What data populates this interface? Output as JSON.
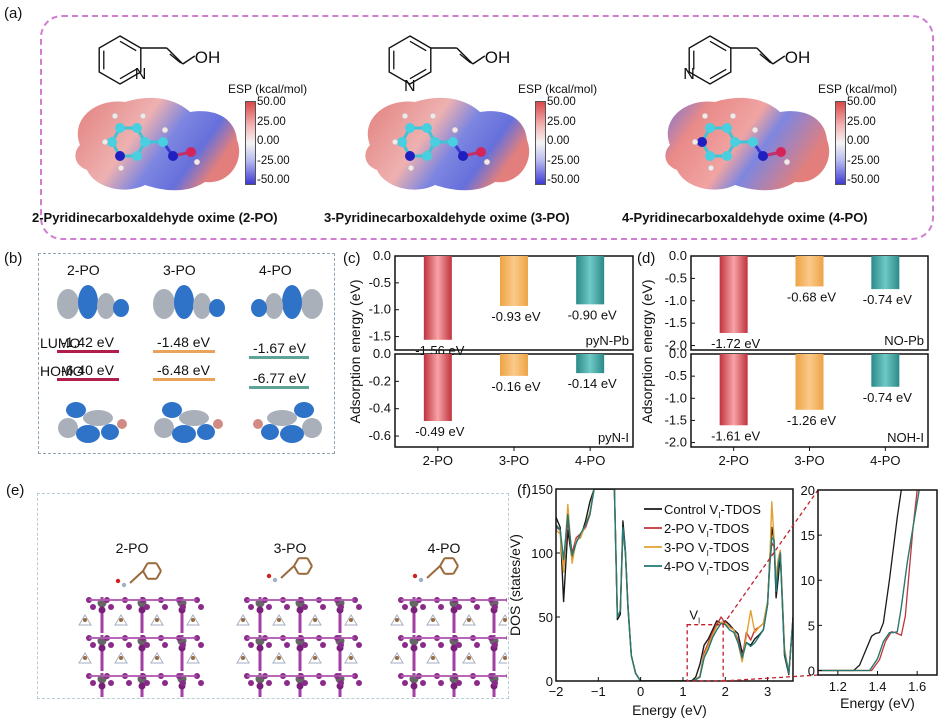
{
  "panel_labels": {
    "a": "(a)",
    "b": "(b)",
    "c": "(c)",
    "d": "(d)",
    "e": "(e)",
    "f": "(f)"
  },
  "panel_a": {
    "molecules": [
      {
        "id": "2-PO",
        "name": "2-Pyridinecarboxaldehyde oxime (2-PO)",
        "structure_n_label": "N",
        "structure_oh_label": "OH",
        "n_position": "ortho"
      },
      {
        "id": "3-PO",
        "name": "3-Pyridinecarboxaldehyde oxime (3-PO)",
        "structure_n_label": "N",
        "structure_oh_label": "OH",
        "n_position": "meta"
      },
      {
        "id": "4-PO",
        "name": "4-Pyridinecarboxaldehyde oxime (4-PO)",
        "structure_n_label": "N",
        "structure_oh_label": "OH",
        "n_position": "para"
      }
    ],
    "esp_title": "ESP  (kcal/mol)",
    "esp_ticks": [
      "50.00",
      "25.00",
      "0.00",
      "-25.00",
      "-50.00"
    ],
    "colors": {
      "positive": "#d94848",
      "neutral": "#f4f4f4",
      "negative": "#3f3ad4",
      "border": "#cf7fd0"
    }
  },
  "panel_b": {
    "columns": [
      "2-PO",
      "3-PO",
      "4-PO"
    ],
    "lumo_label": "LUMO",
    "homo_label": "HOMO",
    "lumo_values": [
      "-1.42 eV",
      "-1.48 eV",
      "-1.67 eV"
    ],
    "homo_values": [
      "-6.40 eV",
      "-6.48 eV",
      "-6.77 eV"
    ],
    "level_colors": [
      "#b01f4a",
      "#e9a35a",
      "#5fa397"
    ]
  },
  "panel_e": {
    "columns": [
      "2-PO",
      "3-PO",
      "4-PO"
    ]
  },
  "chart_data": [
    {
      "id": "c",
      "type": "bar",
      "ylabel": "Adsorption energy (eV)",
      "categories": [
        "2-PO",
        "3-PO",
        "4-PO"
      ],
      "subplots": [
        {
          "name": "pyN-Pb",
          "values": [
            -1.56,
            -0.93,
            -0.9
          ],
          "labels": [
            "-1.56 eV",
            "-0.93 eV",
            "-0.90 eV"
          ],
          "ylim": [
            -1.75,
            0
          ],
          "yticks": [
            "0.0",
            "-0.5",
            "-1.0",
            "-1.5"
          ],
          "ytick_values": [
            0,
            -0.5,
            -1.0,
            -1.5
          ]
        },
        {
          "name": "pyN-I",
          "values": [
            -0.49,
            -0.16,
            -0.14
          ],
          "labels": [
            "-0.49 eV",
            "-0.16 eV",
            "-0.14 eV"
          ],
          "ylim": [
            -0.68,
            0
          ],
          "yticks": [
            "0.0",
            "-0.2",
            "-0.4",
            "-0.6"
          ],
          "ytick_values": [
            0,
            -0.2,
            -0.4,
            -0.6
          ]
        }
      ],
      "colors": [
        "#c0333d",
        "#eda445",
        "#2a8a88"
      ]
    },
    {
      "id": "d",
      "type": "bar",
      "ylabel": "Adsorption energy (eV)",
      "categories": [
        "2-PO",
        "3-PO",
        "4-PO"
      ],
      "subplots": [
        {
          "name": "NO-Pb",
          "values": [
            -1.72,
            -0.68,
            -0.74
          ],
          "labels": [
            "-1.72 eV",
            "-0.68 eV",
            "-0.74 eV"
          ],
          "ylim": [
            -2.1,
            0
          ],
          "yticks": [
            "0.0",
            "-0.5",
            "-1.0",
            "-1.5",
            "-2.0"
          ],
          "ytick_values": [
            0,
            -0.5,
            -1.0,
            -1.5,
            -2.0
          ]
        },
        {
          "name": "NOH-I",
          "values": [
            -1.61,
            -1.26,
            -0.74
          ],
          "labels": [
            "-1.61 eV",
            "-1.26 eV",
            "-0.74 eV"
          ],
          "ylim": [
            -2.1,
            0
          ],
          "yticks": [
            "0.0",
            "-0.5",
            "-1.0",
            "-1.5",
            "-2.0"
          ],
          "ytick_values": [
            0,
            -0.5,
            -1.0,
            -1.5,
            -2.0
          ]
        }
      ],
      "colors": [
        "#c0333d",
        "#eda445",
        "#2a8a88"
      ]
    },
    {
      "id": "f",
      "type": "line",
      "xlabel": "Energy (eV)",
      "ylabel": "DOS (states/eV)",
      "xlim": [
        -2,
        3.6
      ],
      "ylim": [
        0,
        150
      ],
      "xticks": [
        "-2",
        "-1",
        "0",
        "1",
        "2",
        "3"
      ],
      "xtick_values": [
        -2,
        -1,
        0,
        1,
        2,
        3
      ],
      "yticks": [
        "0",
        "50",
        "100",
        "150"
      ],
      "ytick_values": [
        0,
        50,
        100,
        150
      ],
      "legend_position": "top-right",
      "annotation": "V",
      "annotation_sub": "I",
      "zoom_box": {
        "x": [
          1.1,
          1.95
        ],
        "y": [
          0,
          44
        ]
      },
      "series": [
        {
          "name": "Control VI-TDOS",
          "legend_main": "Control V",
          "legend_sub": "I",
          "legend_tail": "-TDOS",
          "color": "#1a1a1a",
          "x": [
            -2,
            -1.9,
            -1.82,
            -1.72,
            -1.62,
            -1.52,
            -1.42,
            -1.3,
            -1.2,
            -1.1,
            -1.0,
            -0.92,
            -0.82,
            -0.72,
            -0.62,
            -0.55,
            -0.48,
            -0.42,
            -0.36,
            -0.3,
            -0.22,
            -0.12,
            0,
            0.5,
            1.0,
            1.2,
            1.3,
            1.4,
            1.5,
            1.6,
            1.7,
            1.8,
            1.9,
            2.0,
            2.1,
            2.2,
            2.3,
            2.4,
            2.5,
            2.6,
            2.7,
            2.8,
            2.9,
            3.0,
            3.05,
            3.1,
            3.15,
            3.2,
            3.25,
            3.3,
            3.4,
            3.5,
            3.6
          ],
          "y": [
            128,
            120,
            62,
            118,
            95,
            110,
            112,
            125,
            140,
            150,
            150,
            150,
            150,
            150,
            150,
            48,
            52,
            125,
            102,
            60,
            20,
            6,
            0,
            0,
            0,
            0,
            3,
            13,
            28,
            33,
            40,
            47,
            45,
            47,
            44,
            40,
            37,
            22,
            30,
            28,
            33,
            36,
            40,
            60,
            95,
            120,
            110,
            65,
            80,
            100,
            20,
            5,
            50
          ]
        },
        {
          "name": "2-PO VI-TDOS",
          "legend_main": "2-PO V",
          "legend_sub": "I",
          "legend_tail": "-TDOS",
          "color": "#c0333d",
          "x": [
            -2,
            -1.9,
            -1.82,
            -1.72,
            -1.62,
            -1.52,
            -1.42,
            -1.3,
            -1.2,
            -1.1,
            -1.0,
            -0.92,
            -0.82,
            -0.72,
            -0.62,
            -0.55,
            -0.48,
            -0.42,
            -0.36,
            -0.3,
            -0.22,
            -0.12,
            0,
            0.5,
            1.0,
            1.2,
            1.3,
            1.4,
            1.5,
            1.6,
            1.7,
            1.8,
            1.9,
            2.0,
            2.1,
            2.2,
            2.3,
            2.4,
            2.5,
            2.6,
            2.7,
            2.8,
            2.9,
            3.0,
            3.05,
            3.1,
            3.15,
            3.2,
            3.25,
            3.3,
            3.4,
            3.5,
            3.6
          ],
          "y": [
            120,
            118,
            88,
            125,
            100,
            112,
            115,
            120,
            130,
            150,
            150,
            150,
            150,
            150,
            150,
            50,
            55,
            118,
            100,
            58,
            20,
            6,
            0,
            0,
            0,
            0,
            1,
            4,
            22,
            30,
            38,
            44,
            50,
            45,
            42,
            40,
            32,
            18,
            38,
            32,
            40,
            42,
            45,
            62,
            90,
            108,
            105,
            78,
            95,
            102,
            25,
            6,
            48
          ]
        },
        {
          "name": "3-PO VI-TDOS",
          "legend_main": "3-PO V",
          "legend_sub": "I",
          "legend_tail": "-TDOS",
          "color": "#e3a030",
          "x": [
            -2,
            -1.9,
            -1.82,
            -1.72,
            -1.62,
            -1.52,
            -1.42,
            -1.3,
            -1.2,
            -1.1,
            -1.0,
            -0.92,
            -0.82,
            -0.72,
            -0.62,
            -0.55,
            -0.48,
            -0.42,
            -0.36,
            -0.3,
            -0.22,
            -0.12,
            0,
            0.5,
            1.0,
            1.2,
            1.3,
            1.4,
            1.5,
            1.6,
            1.7,
            1.8,
            1.9,
            2.0,
            2.1,
            2.2,
            2.3,
            2.4,
            2.5,
            2.6,
            2.7,
            2.8,
            2.9,
            3.0,
            3.05,
            3.1,
            3.15,
            3.2,
            3.25,
            3.3,
            3.4,
            3.5,
            3.6
          ],
          "y": [
            118,
            115,
            85,
            138,
            92,
            110,
            112,
            122,
            132,
            150,
            150,
            150,
            150,
            150,
            150,
            50,
            55,
            118,
            100,
            58,
            20,
            6,
            0,
            0,
            0,
            0,
            1,
            4,
            20,
            28,
            36,
            43,
            46,
            45,
            42,
            40,
            30,
            15,
            35,
            55,
            38,
            42,
            45,
            62,
            92,
            140,
            112,
            78,
            95,
            102,
            25,
            6,
            48
          ]
        },
        {
          "name": "4-PO VI-TDOS",
          "legend_main": "4-PO V",
          "legend_sub": "I",
          "legend_tail": "-TDOS",
          "color": "#1f7a78",
          "x": [
            -2,
            -1.9,
            -1.82,
            -1.72,
            -1.62,
            -1.52,
            -1.42,
            -1.3,
            -1.2,
            -1.1,
            -1.0,
            -0.92,
            -0.82,
            -0.72,
            -0.62,
            -0.55,
            -0.48,
            -0.42,
            -0.36,
            -0.3,
            -0.22,
            -0.12,
            0,
            0.5,
            1.0,
            1.2,
            1.3,
            1.4,
            1.5,
            1.6,
            1.7,
            1.8,
            1.9,
            2.0,
            2.1,
            2.2,
            2.3,
            2.4,
            2.5,
            2.6,
            2.7,
            2.8,
            2.9,
            3.0,
            3.05,
            3.1,
            3.15,
            3.2,
            3.25,
            3.3,
            3.4,
            3.5,
            3.6
          ],
          "y": [
            122,
            118,
            95,
            130,
            98,
            108,
            115,
            122,
            130,
            150,
            150,
            150,
            150,
            150,
            150,
            50,
            55,
            120,
            100,
            58,
            20,
            6,
            0,
            0,
            0,
            0,
            1,
            3,
            18,
            25,
            34,
            40,
            45,
            44,
            40,
            38,
            30,
            18,
            30,
            27,
            30,
            35,
            40,
            60,
            90,
            112,
            110,
            70,
            90,
            100,
            22,
            6,
            48
          ]
        }
      ]
    },
    {
      "id": "f-inset",
      "type": "line",
      "xlabel": "Energy (eV)",
      "xlim": [
        1.1,
        1.7
      ],
      "ylim": [
        -0.5,
        20
      ],
      "xticks": [
        "1.2",
        "1.4",
        "1.6"
      ],
      "xtick_values": [
        1.2,
        1.4,
        1.6
      ],
      "yticks": [
        "0",
        "5",
        "10",
        "15",
        "20"
      ],
      "ytick_values": [
        0,
        5,
        10,
        15,
        20
      ],
      "series": [
        {
          "name": "Control VI-TDOS",
          "color": "#1a1a1a",
          "x": [
            1.1,
            1.28,
            1.31,
            1.34,
            1.37,
            1.39,
            1.41,
            1.43,
            1.46,
            1.5,
            1.52
          ],
          "y": [
            0,
            0,
            0.6,
            2.2,
            3.8,
            4.1,
            4.2,
            5.3,
            10,
            17,
            20
          ]
        },
        {
          "name": "2-PO VI-TDOS",
          "color": "#c0333d",
          "x": [
            1.1,
            1.37,
            1.41,
            1.44,
            1.47,
            1.49,
            1.52,
            1.54,
            1.56,
            1.58,
            1.6
          ],
          "y": [
            0,
            0,
            1.2,
            3.2,
            4.3,
            4.2,
            3.9,
            6,
            11,
            16,
            20
          ]
        },
        {
          "name": "3-PO VI-TDOS",
          "color": "#e3a030",
          "x": [
            1.1,
            1.36,
            1.4,
            1.43,
            1.46,
            1.48,
            1.5,
            1.52,
            1.55,
            1.58,
            1.61
          ],
          "y": [
            0,
            0,
            1.3,
            3.2,
            4.2,
            4.2,
            4.3,
            7,
            12,
            16,
            20
          ]
        },
        {
          "name": "4-PO VI-TDOS",
          "color": "#1f7a78",
          "x": [
            1.1,
            1.36,
            1.4,
            1.43,
            1.46,
            1.48,
            1.5,
            1.52,
            1.55,
            1.58,
            1.61
          ],
          "y": [
            0,
            0,
            1.3,
            3.2,
            4.2,
            4.2,
            4.3,
            7,
            12,
            16,
            20
          ]
        }
      ]
    }
  ]
}
